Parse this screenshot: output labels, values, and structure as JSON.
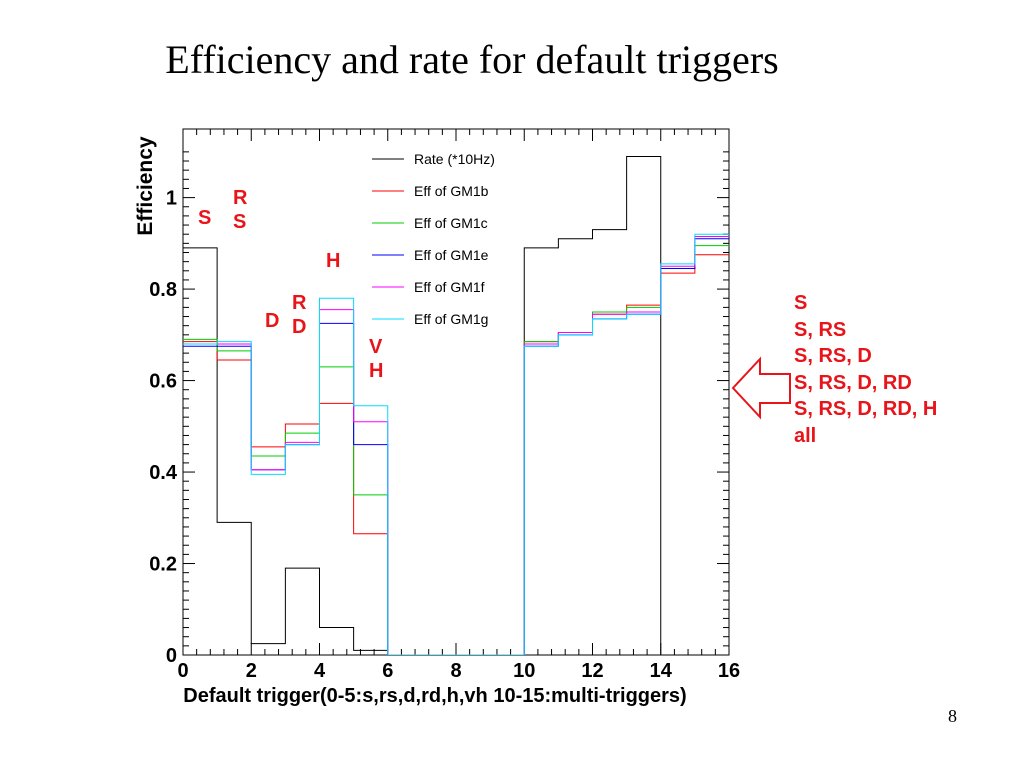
{
  "slide": {
    "title": "Efficiency and rate for default triggers",
    "page_number": "8",
    "side_list": [
      "S",
      "S, RS",
      "S, RS, D",
      "S, RS, D, RD",
      "S, RS, D, RD, H",
      "all"
    ]
  },
  "annotations": [
    {
      "text": "S"
    },
    {
      "text": "R\nS"
    },
    {
      "text": "D"
    },
    {
      "text": "R\nD"
    },
    {
      "text": "H"
    },
    {
      "text": "V\nH"
    }
  ],
  "colors": {
    "rate": "#000000",
    "gm1b": "#ff0000",
    "gm1c": "#00cc00",
    "gm1e": "#0000ff",
    "gm1f": "#ff00ff",
    "gm1g": "#00ddff",
    "annotation": "#e8141a"
  },
  "chart_data": {
    "type": "line",
    "step": true,
    "xlabel": "Default trigger(0-5:s,rs,d,rd,h,vh 10-15:multi-triggers)",
    "ylabel": "Efficiency",
    "xlim": [
      0,
      16
    ],
    "ylim": [
      0,
      1.15
    ],
    "x_ticks": [
      "0",
      "2",
      "4",
      "6",
      "8",
      "10",
      "12",
      "14",
      "16"
    ],
    "y_ticks": [
      "0",
      "0.2",
      "0.4",
      "0.6",
      "0.8",
      "1"
    ],
    "bin_edges": [
      0,
      1,
      2,
      3,
      4,
      5,
      6,
      7,
      8,
      9,
      10,
      11,
      12,
      13,
      14,
      15,
      16
    ],
    "legend_position": "top-right",
    "series": [
      {
        "name": "Rate (*10Hz)",
        "color": "#000000",
        "values": [
          0.89,
          0.29,
          0.025,
          0.19,
          0.06,
          0.01,
          0,
          0,
          0,
          0,
          0.89,
          0.91,
          0.93,
          1.09,
          0,
          0
        ]
      },
      {
        "name": "Eff of GM1b",
        "color": "#ff0000",
        "values": [
          0.685,
          0.645,
          0.455,
          0.505,
          0.55,
          0.265,
          0,
          0,
          0,
          0,
          0.685,
          0.705,
          0.745,
          0.765,
          0.835,
          0.875
        ]
      },
      {
        "name": "Eff of GM1c",
        "color": "#00cc00",
        "values": [
          0.69,
          0.665,
          0.435,
          0.485,
          0.63,
          0.35,
          0,
          0,
          0,
          0,
          0.685,
          0.705,
          0.75,
          0.76,
          0.845,
          0.895
        ]
      },
      {
        "name": "Eff of GM1e",
        "color": "#0000ff",
        "values": [
          0.675,
          0.675,
          0.405,
          0.46,
          0.725,
          0.46,
          0,
          0,
          0,
          0,
          0.675,
          0.7,
          0.735,
          0.745,
          0.845,
          0.91
        ]
      },
      {
        "name": "Eff of GM1f",
        "color": "#ff00ff",
        "values": [
          0.68,
          0.68,
          0.405,
          0.465,
          0.755,
          0.51,
          0,
          0,
          0,
          0,
          0.68,
          0.705,
          0.745,
          0.75,
          0.85,
          0.915
        ]
      },
      {
        "name": "Eff of GM1g",
        "color": "#00ddff",
        "values": [
          0.68,
          0.685,
          0.395,
          0.46,
          0.78,
          0.545,
          0,
          0,
          0,
          0,
          0.675,
          0.7,
          0.735,
          0.745,
          0.855,
          0.92
        ]
      }
    ]
  }
}
